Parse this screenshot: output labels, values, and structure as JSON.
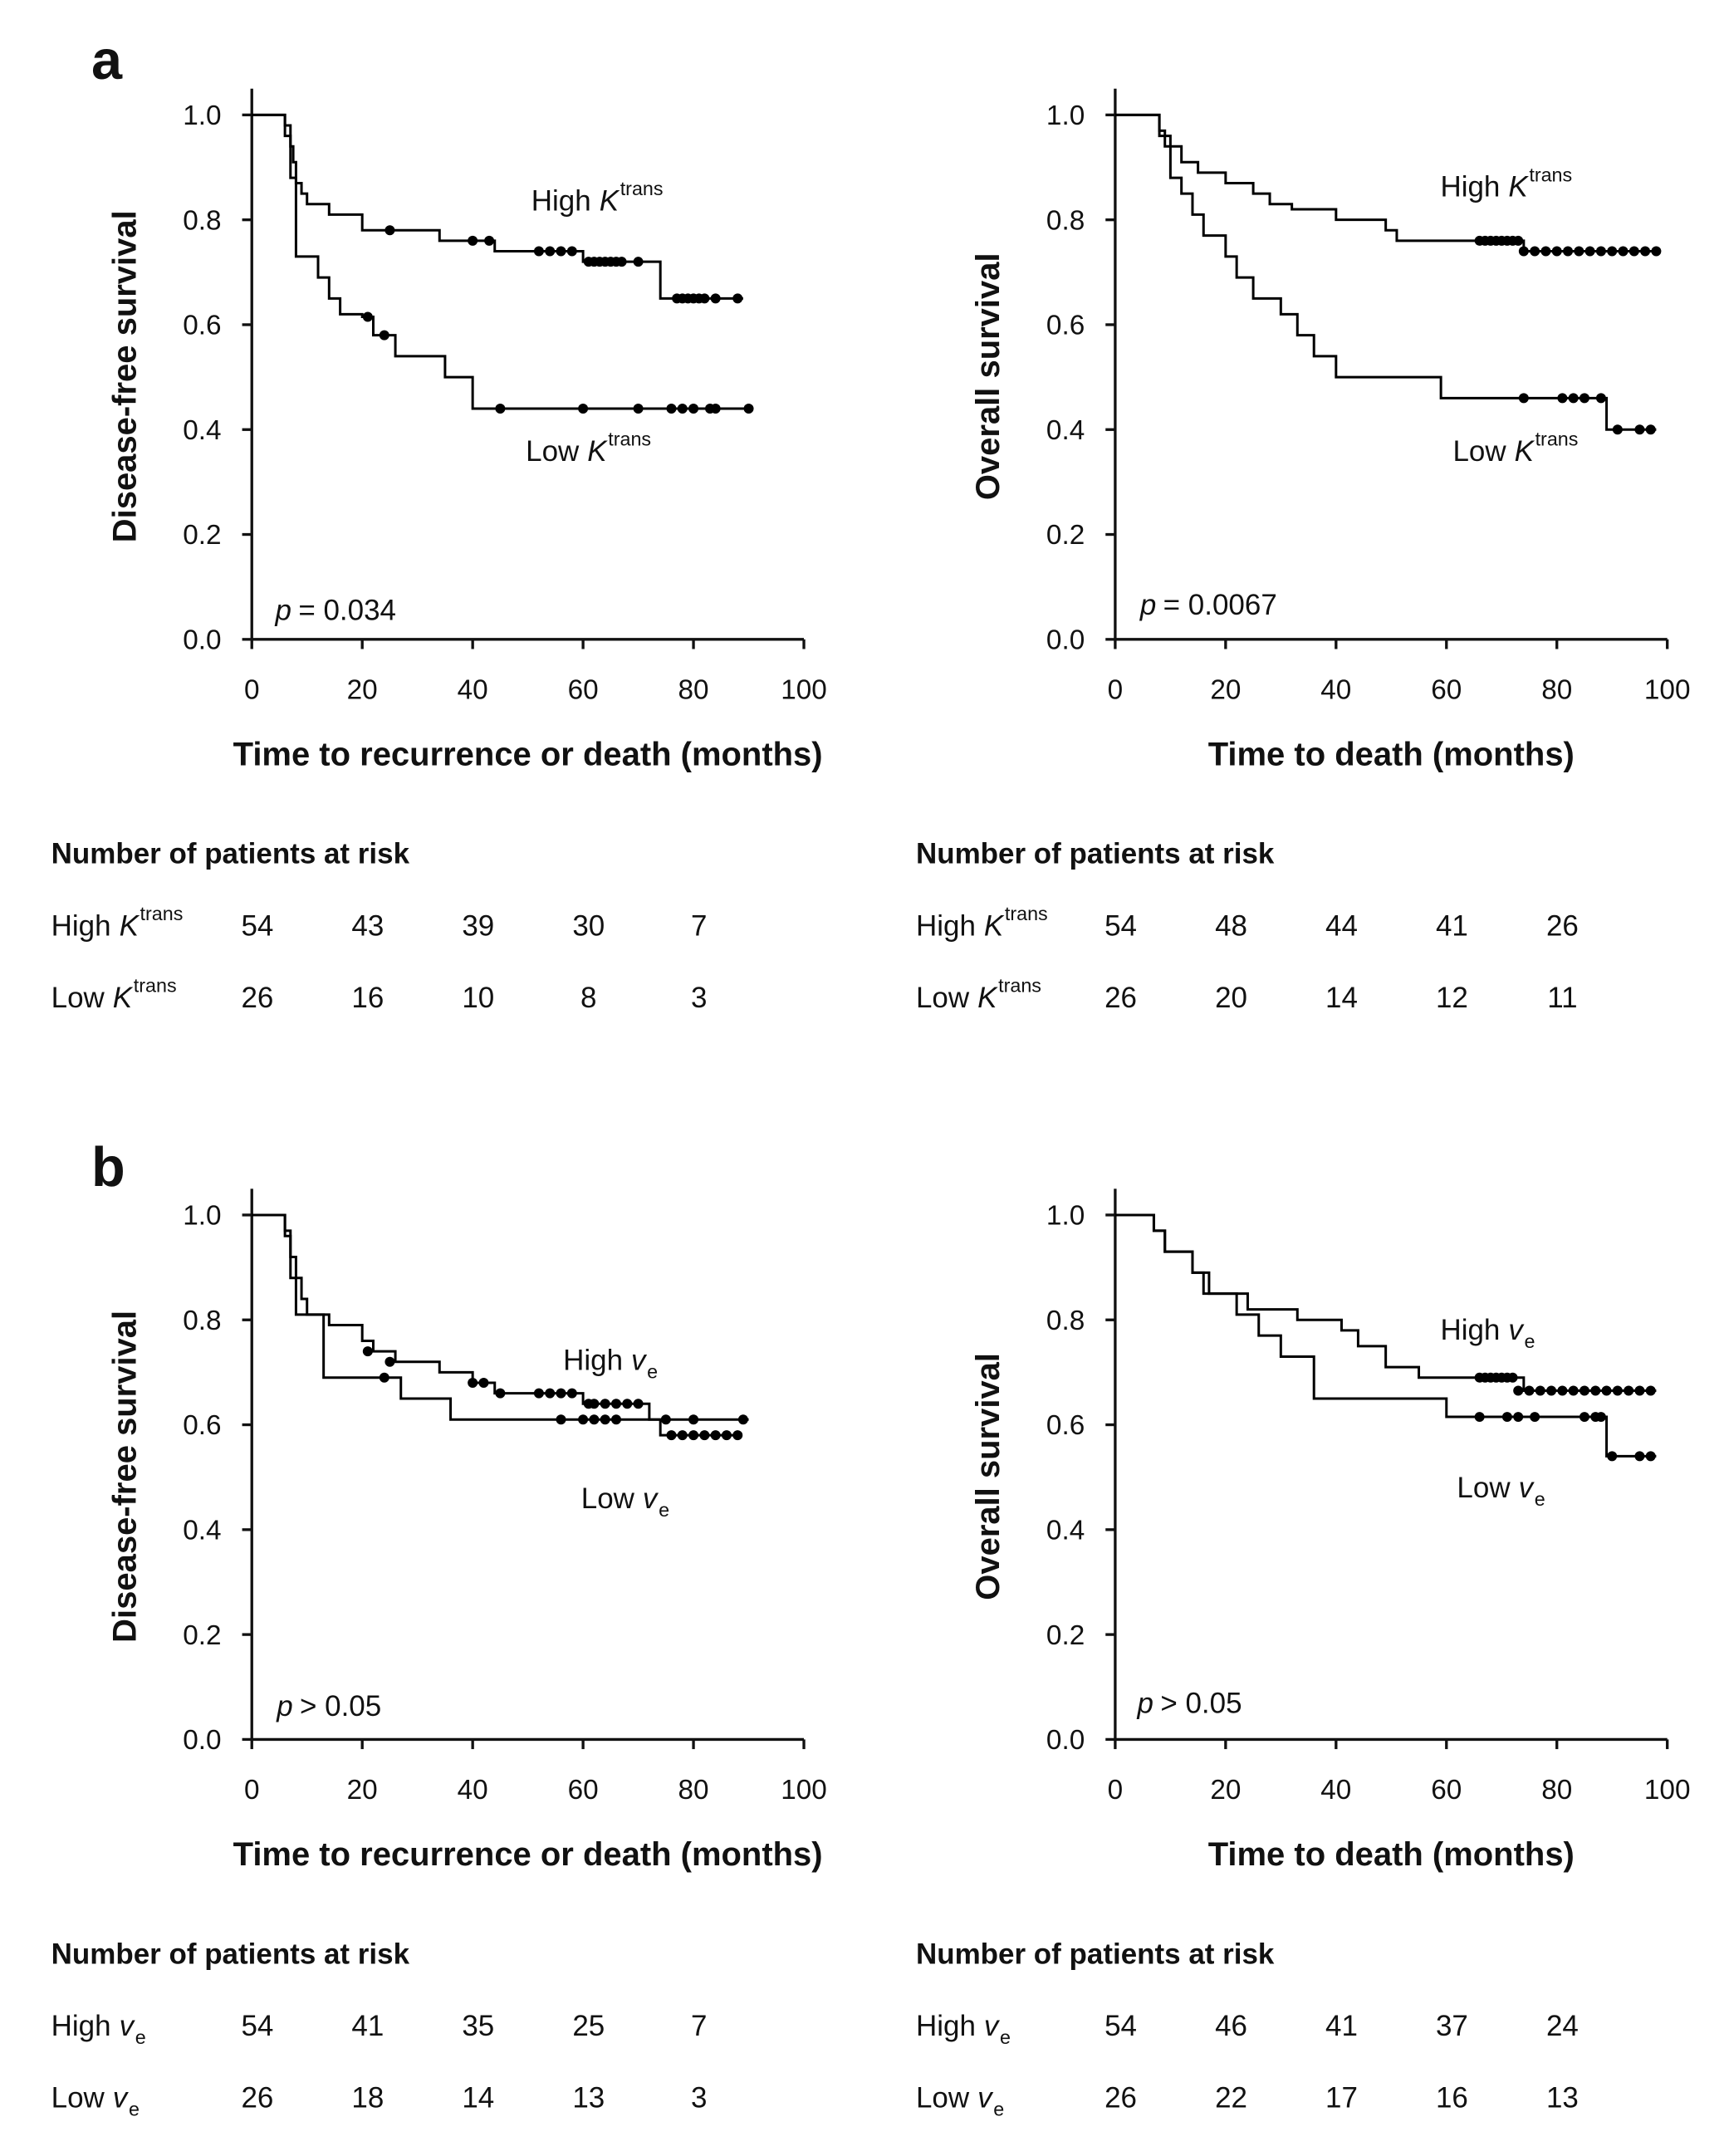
{
  "panels": [
    "a",
    "b"
  ],
  "chart_data": [
    {
      "type": "step",
      "ylabel": "Disease-free survival",
      "xlabel": "Time to recurrence or death (months)",
      "xlim": [
        0,
        100
      ],
      "ylim": [
        0,
        1.05
      ],
      "xticks": [
        0,
        20,
        40,
        60,
        80,
        100
      ],
      "yticks": [
        {
          "value": 0,
          "label": "0.0"
        },
        {
          "value": 0.2,
          "label": "0.2"
        },
        {
          "value": 0.4,
          "label": "0.4"
        },
        {
          "value": 0.6,
          "label": "0.6"
        },
        {
          "value": 0.8,
          "label": "0.8"
        },
        {
          "value": 1,
          "label": "1.0"
        }
      ],
      "annotation": {
        "symbol": "p",
        "text": "= 0.034"
      },
      "series": [
        {
          "name": "High",
          "symbol": "K",
          "script": "trans",
          "script_position": "super",
          "color": "#000000",
          "x": [
            0,
            6,
            7,
            7.5,
            8,
            9,
            10,
            14,
            20,
            34,
            44,
            60,
            74,
            89
          ],
          "y": [
            1,
            0.98,
            0.94,
            0.91,
            0.87,
            0.85,
            0.83,
            0.81,
            0.78,
            0.76,
            0.74,
            0.72,
            0.65,
            0.65
          ],
          "censored_x": [
            25,
            40,
            43,
            52,
            54,
            56,
            58,
            61,
            62,
            63,
            64,
            65,
            66,
            67,
            70,
            77,
            78,
            79,
            80,
            81,
            82,
            84,
            88
          ],
          "censored_y": [
            0.78,
            0.76,
            0.76,
            0.74,
            0.74,
            0.74,
            0.74,
            0.72,
            0.72,
            0.72,
            0.72,
            0.72,
            0.72,
            0.72,
            0.72,
            0.65,
            0.65,
            0.65,
            0.65,
            0.65,
            0.65,
            0.65,
            0.65
          ]
        },
        {
          "name": "Low",
          "symbol": "K",
          "script": "trans",
          "script_position": "super",
          "color": "#000000",
          "x": [
            0,
            6,
            7,
            8,
            12,
            14,
            16,
            20,
            22,
            26,
            35,
            40,
            90
          ],
          "y": [
            1,
            0.96,
            0.88,
            0.73,
            0.69,
            0.65,
            0.62,
            0.615,
            0.58,
            0.54,
            0.5,
            0.44,
            0.44
          ],
          "censored_x": [
            21,
            24,
            45,
            60,
            70,
            76,
            78,
            80,
            83,
            84,
            90
          ],
          "censored_y": [
            0.615,
            0.58,
            0.44,
            0.44,
            0.44,
            0.44,
            0.44,
            0.44,
            0.44,
            0.44,
            0.44
          ]
        }
      ]
    },
    {
      "type": "step",
      "ylabel": "Overall survival",
      "xlabel": "Time to death (months)",
      "xlim": [
        0,
        100
      ],
      "ylim": [
        0,
        1.05
      ],
      "xticks": [
        0,
        20,
        40,
        60,
        80,
        100
      ],
      "yticks": [
        {
          "value": 0,
          "label": "0.0"
        },
        {
          "value": 0.2,
          "label": "0.2"
        },
        {
          "value": 0.4,
          "label": "0.4"
        },
        {
          "value": 0.6,
          "label": "0.6"
        },
        {
          "value": 0.8,
          "label": "0.8"
        },
        {
          "value": 1,
          "label": "1.0"
        }
      ],
      "annotation": {
        "symbol": "p",
        "text": "= 0.0067"
      },
      "series": [
        {
          "name": "High",
          "symbol": "K",
          "script": "trans",
          "script_position": "super",
          "color": "#000000",
          "x": [
            0,
            8,
            9,
            12,
            15,
            20,
            25,
            28,
            32,
            40,
            49,
            51,
            74,
            98
          ],
          "y": [
            1,
            0.97,
            0.94,
            0.91,
            0.89,
            0.87,
            0.85,
            0.83,
            0.82,
            0.8,
            0.78,
            0.76,
            0.74,
            0.74
          ],
          "censored_x": [
            66,
            67,
            68,
            69,
            70,
            71,
            72,
            73,
            74,
            76,
            78,
            80,
            82,
            84,
            86,
            88,
            90,
            92,
            94,
            96,
            98
          ],
          "censored_y": [
            0.76,
            0.76,
            0.76,
            0.76,
            0.76,
            0.76,
            0.76,
            0.76,
            0.74,
            0.74,
            0.74,
            0.74,
            0.74,
            0.74,
            0.74,
            0.74,
            0.74,
            0.74,
            0.74,
            0.74,
            0.74
          ]
        },
        {
          "name": "Low",
          "symbol": "K",
          "script": "trans",
          "script_position": "super",
          "color": "#000000",
          "x": [
            0,
            8,
            10,
            12,
            14,
            16,
            20,
            22,
            25,
            30,
            33,
            36,
            40,
            59,
            89,
            98
          ],
          "y": [
            1,
            0.96,
            0.88,
            0.85,
            0.81,
            0.77,
            0.73,
            0.69,
            0.65,
            0.62,
            0.58,
            0.54,
            0.5,
            0.46,
            0.4,
            0.4
          ],
          "censored_x": [
            74,
            81,
            83,
            85,
            88,
            91,
            95,
            97
          ],
          "censored_y": [
            0.46,
            0.46,
            0.46,
            0.46,
            0.46,
            0.4,
            0.4,
            0.4
          ]
        }
      ]
    },
    {
      "type": "step",
      "ylabel": "Disease-free survival",
      "xlabel": "Time to recurrence or death (months)",
      "xlim": [
        0,
        100
      ],
      "ylim": [
        0,
        1.05
      ],
      "xticks": [
        0,
        20,
        40,
        60,
        80,
        100
      ],
      "yticks": [
        {
          "value": 0,
          "label": "0.0"
        },
        {
          "value": 0.2,
          "label": "0.2"
        },
        {
          "value": 0.4,
          "label": "0.4"
        },
        {
          "value": 0.6,
          "label": "0.6"
        },
        {
          "value": 0.8,
          "label": "0.8"
        },
        {
          "value": 1,
          "label": "1.0"
        }
      ],
      "annotation": {
        "symbol": "p",
        "text": "> 0.05"
      },
      "series": [
        {
          "name": "High",
          "symbol": "v",
          "script": "e",
          "script_position": "sub",
          "color": "#000000",
          "x": [
            0,
            6,
            7,
            8,
            9,
            10,
            14,
            20,
            22,
            26,
            34,
            40,
            44,
            60,
            72,
            74,
            88
          ],
          "y": [
            1,
            0.97,
            0.92,
            0.88,
            0.84,
            0.81,
            0.79,
            0.76,
            0.74,
            0.72,
            0.7,
            0.68,
            0.66,
            0.64,
            0.61,
            0.58,
            0.58
          ],
          "censored_x": [
            21,
            25,
            40,
            42,
            45,
            52,
            54,
            56,
            58,
            61,
            62,
            64,
            66,
            68,
            70,
            76,
            78,
            80,
            82,
            84,
            86,
            88
          ],
          "censored_y": [
            0.74,
            0.72,
            0.68,
            0.68,
            0.66,
            0.66,
            0.66,
            0.66,
            0.66,
            0.64,
            0.64,
            0.64,
            0.64,
            0.64,
            0.64,
            0.58,
            0.58,
            0.58,
            0.58,
            0.58,
            0.58,
            0.58
          ]
        },
        {
          "name": "Low",
          "symbol": "v",
          "script": "e",
          "script_position": "sub",
          "color": "#000000",
          "x": [
            0,
            6,
            7,
            8,
            13,
            24,
            27,
            36,
            90
          ],
          "y": [
            1,
            0.96,
            0.88,
            0.81,
            0.69,
            0.69,
            0.65,
            0.61,
            0.61
          ],
          "censored_x": [
            24,
            56,
            60,
            62,
            64,
            66,
            75,
            80,
            89
          ],
          "censored_y": [
            0.69,
            0.61,
            0.61,
            0.61,
            0.61,
            0.61,
            0.61,
            0.61,
            0.61
          ]
        }
      ]
    },
    {
      "type": "step",
      "ylabel": "Overall survival",
      "xlabel": "Time to death (months)",
      "xlim": [
        0,
        100
      ],
      "ylim": [
        0,
        1.05
      ],
      "xticks": [
        0,
        20,
        40,
        60,
        80,
        100
      ],
      "yticks": [
        {
          "value": 0,
          "label": "0.0"
        },
        {
          "value": 0.2,
          "label": "0.2"
        },
        {
          "value": 0.4,
          "label": "0.4"
        },
        {
          "value": 0.6,
          "label": "0.6"
        },
        {
          "value": 0.8,
          "label": "0.8"
        },
        {
          "value": 1,
          "label": "1.0"
        }
      ],
      "annotation": {
        "symbol": "p",
        "text": "> 0.05"
      },
      "series": [
        {
          "name": "High",
          "symbol": "v",
          "script": "e",
          "script_position": "sub",
          "color": "#000000",
          "x": [
            0,
            7,
            9,
            14,
            17,
            24,
            33,
            41,
            44,
            49,
            55,
            74,
            98
          ],
          "y": [
            1,
            0.97,
            0.93,
            0.89,
            0.85,
            0.82,
            0.8,
            0.78,
            0.75,
            0.71,
            0.69,
            0.665,
            0.665
          ],
          "censored_x": [
            66,
            67,
            68,
            69,
            70,
            71,
            72,
            73,
            75,
            77,
            79,
            81,
            83,
            85,
            87,
            89,
            91,
            93,
            95,
            97
          ],
          "censored_y": [
            0.69,
            0.69,
            0.69,
            0.69,
            0.69,
            0.69,
            0.69,
            0.665,
            0.665,
            0.665,
            0.665,
            0.665,
            0.665,
            0.665,
            0.665,
            0.665,
            0.665,
            0.665,
            0.665,
            0.665
          ]
        },
        {
          "name": "Low",
          "symbol": "v",
          "script": "e",
          "script_position": "sub",
          "color": "#000000",
          "x": [
            0,
            7,
            9,
            14,
            16,
            22,
            26,
            30,
            36,
            60,
            89,
            98
          ],
          "y": [
            1,
            0.97,
            0.93,
            0.89,
            0.85,
            0.81,
            0.77,
            0.73,
            0.65,
            0.615,
            0.54,
            0.54
          ],
          "censored_x": [
            66,
            71,
            73,
            76,
            85,
            87,
            88,
            90,
            95,
            97
          ],
          "censored_y": [
            0.615,
            0.615,
            0.615,
            0.615,
            0.615,
            0.615,
            0.615,
            0.54,
            0.54,
            0.54
          ]
        }
      ]
    }
  ],
  "risk_tables": [
    {
      "title": "Number of patients at risk",
      "rows": [
        {
          "name": "High",
          "symbol": "K",
          "script": "trans",
          "script_position": "super",
          "values": [
            54,
            43,
            39,
            30,
            7
          ]
        },
        {
          "name": "Low",
          "symbol": "K",
          "script": "trans",
          "script_position": "super",
          "values": [
            26,
            16,
            10,
            8,
            3
          ]
        }
      ]
    },
    {
      "title": "Number of patients at risk",
      "rows": [
        {
          "name": "High",
          "symbol": "K",
          "script": "trans",
          "script_position": "super",
          "values": [
            54,
            48,
            44,
            41,
            26
          ]
        },
        {
          "name": "Low",
          "symbol": "K",
          "script": "trans",
          "script_position": "super",
          "values": [
            26,
            20,
            14,
            12,
            11
          ]
        }
      ]
    },
    {
      "title": "Number of patients at risk",
      "rows": [
        {
          "name": "High",
          "symbol": "v",
          "script": "e",
          "script_position": "sub",
          "values": [
            54,
            41,
            35,
            25,
            7
          ]
        },
        {
          "name": "Low",
          "symbol": "v",
          "script": "e",
          "script_position": "sub",
          "values": [
            26,
            18,
            14,
            13,
            3
          ]
        }
      ]
    },
    {
      "title": "Number of patients at risk",
      "rows": [
        {
          "name": "High",
          "symbol": "v",
          "script": "e",
          "script_position": "sub",
          "values": [
            54,
            46,
            41,
            37,
            24
          ]
        },
        {
          "name": "Low",
          "symbol": "v",
          "script": "e",
          "script_position": "sub",
          "values": [
            26,
            22,
            17,
            16,
            13
          ]
        }
      ]
    }
  ]
}
